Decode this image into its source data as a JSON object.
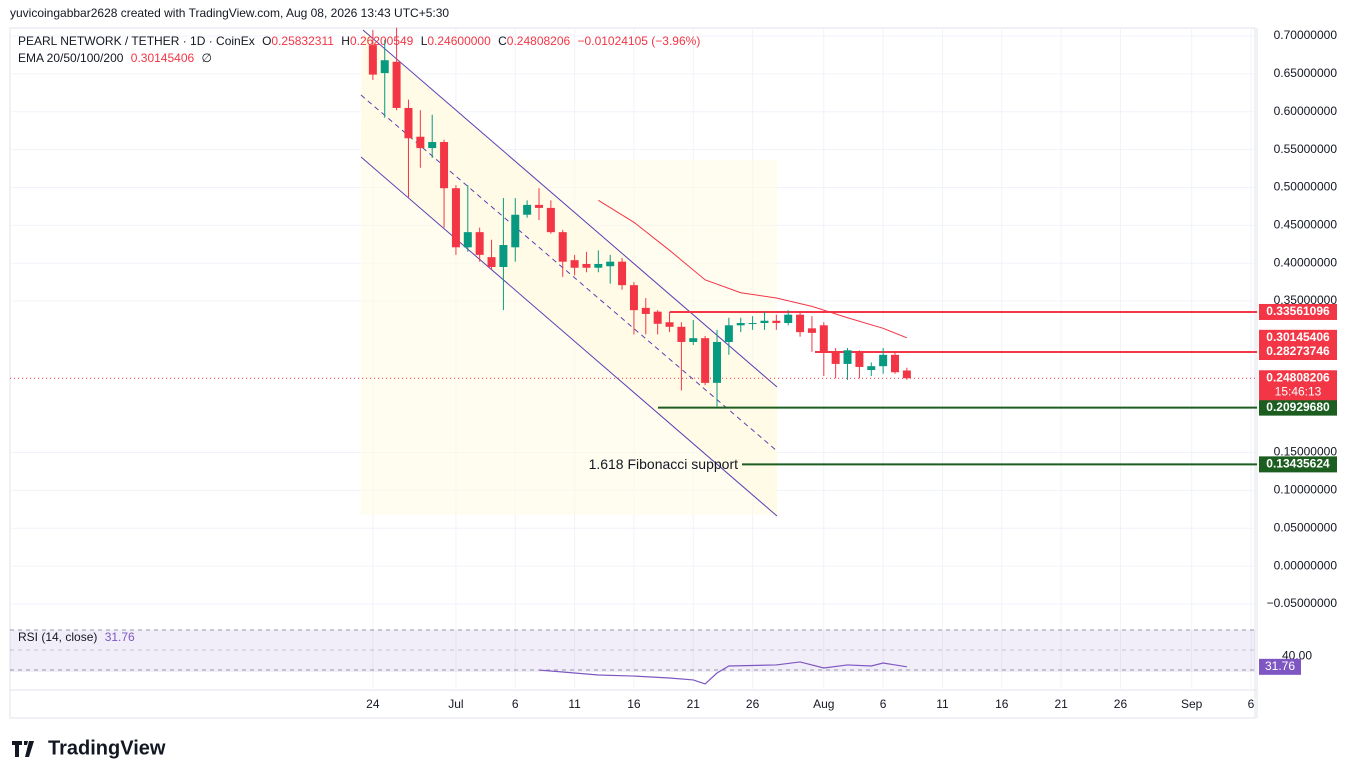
{
  "author_line": "yuvicoingabbar2628 created with TradingView.com, Aug 08, 2026 13:43 UTC+5:30",
  "logo": "TradingView",
  "chart_data": {
    "type": "candlestick",
    "title": "PEARL NETWORK / TETHER · 1D · CoinEx",
    "header": {
      "labels": [
        "O",
        "H",
        "L",
        "C"
      ],
      "values": [
        "0.25832311",
        "0.26200549",
        "0.24600000",
        "0.24808206"
      ],
      "change": "−0.01024105 (−3.96%)"
    },
    "up_color": "#089981",
    "down_color": "#f23645",
    "x": [
      "2026-06-24",
      "2026-06-25",
      "2026-06-26",
      "2026-06-27",
      "2026-06-28",
      "2026-06-29",
      "2026-06-30",
      "2026-07-01",
      "2026-07-02",
      "2026-07-03",
      "2026-07-04",
      "2026-07-05",
      "2026-07-06",
      "2026-07-07",
      "2026-07-08",
      "2026-07-09",
      "2026-07-10",
      "2026-07-11",
      "2026-07-12",
      "2026-07-13",
      "2026-07-14",
      "2026-07-15",
      "2026-07-16",
      "2026-07-17",
      "2026-07-18",
      "2026-07-19",
      "2026-07-20",
      "2026-07-21",
      "2026-07-22",
      "2026-07-23",
      "2026-07-24",
      "2026-07-25",
      "2026-07-26",
      "2026-07-27",
      "2026-07-28",
      "2026-07-29",
      "2026-07-30",
      "2026-07-31",
      "2026-08-01",
      "2026-08-02",
      "2026-08-03",
      "2026-08-04",
      "2026-08-05",
      "2026-08-06",
      "2026-08-07",
      "2026-08-08"
    ],
    "open": [
      0.688,
      0.651,
      0.666,
      0.605,
      0.567,
      0.552,
      0.56,
      0.499,
      0.421,
      0.441,
      0.408,
      0.395,
      0.421,
      0.464,
      0.477,
      0.473,
      0.441,
      0.404,
      0.399,
      0.394,
      0.396,
      0.402,
      0.371,
      0.341,
      0.336,
      0.322,
      0.316,
      0.296,
      0.301,
      0.242,
      0.296,
      0.318,
      0.32,
      0.321,
      0.324,
      0.321,
      0.332,
      0.314,
      0.318,
      0.283,
      0.267,
      0.283,
      0.259,
      0.264,
      0.279,
      0.25832311
    ],
    "high": [
      0.708,
      0.695,
      0.711,
      0.616,
      0.602,
      0.596,
      0.563,
      0.503,
      0.503,
      0.447,
      0.431,
      0.486,
      0.486,
      0.483,
      0.499,
      0.483,
      0.444,
      0.411,
      0.415,
      0.417,
      0.411,
      0.407,
      0.375,
      0.354,
      0.338,
      0.336,
      0.322,
      0.325,
      0.304,
      0.312,
      0.328,
      0.328,
      0.33,
      0.336,
      0.332,
      0.338,
      0.336,
      0.33,
      0.322,
      0.288,
      0.288,
      0.285,
      0.269,
      0.288,
      0.283,
      0.26200549
    ],
    "low": [
      0.642,
      0.592,
      0.602,
      0.487,
      0.526,
      0.539,
      0.447,
      0.411,
      0.415,
      0.402,
      0.391,
      0.338,
      0.402,
      0.46,
      0.457,
      0.439,
      0.382,
      0.384,
      0.388,
      0.388,
      0.373,
      0.365,
      0.306,
      0.306,
      0.306,
      0.309,
      0.232,
      0.292,
      0.239,
      0.211,
      0.279,
      0.309,
      0.312,
      0.312,
      0.312,
      0.318,
      0.303,
      0.283,
      0.251,
      0.248,
      0.246,
      0.248,
      0.251,
      0.254,
      0.254,
      0.246
    ],
    "close": [
      0.649,
      0.668,
      0.605,
      0.565,
      0.552,
      0.56,
      0.499,
      0.421,
      0.441,
      0.411,
      0.395,
      0.424,
      0.464,
      0.477,
      0.473,
      0.441,
      0.402,
      0.394,
      0.394,
      0.399,
      0.402,
      0.371,
      0.338,
      0.333,
      0.32,
      0.316,
      0.296,
      0.301,
      0.242,
      0.296,
      0.318,
      0.321,
      0.321,
      0.324,
      0.321,
      0.332,
      0.309,
      0.308,
      0.283,
      0.267,
      0.285,
      0.263,
      0.264,
      0.279,
      0.256,
      0.24808206
    ],
    "countdown": "15:46:13",
    "xlim": [
      "2026-05-24",
      "2026-09-06"
    ],
    "xticks": [
      {
        "value": "2026-06-24",
        "label": "24"
      },
      {
        "value": "2026-07-01",
        "label": "Jul"
      },
      {
        "value": "2026-07-06",
        "label": "6"
      },
      {
        "value": "2026-07-11",
        "label": "11"
      },
      {
        "value": "2026-07-16",
        "label": "16"
      },
      {
        "value": "2026-07-21",
        "label": "21"
      },
      {
        "value": "2026-07-26",
        "label": "26"
      },
      {
        "value": "2026-08-01",
        "label": "Aug"
      },
      {
        "value": "2026-08-06",
        "label": "6"
      },
      {
        "value": "2026-08-11",
        "label": "11"
      },
      {
        "value": "2026-08-16",
        "label": "16"
      },
      {
        "value": "2026-08-21",
        "label": "21"
      },
      {
        "value": "2026-08-26",
        "label": "26"
      },
      {
        "value": "2026-09-01",
        "label": "Sep"
      },
      {
        "value": "2026-09-06",
        "label": "6"
      }
    ],
    "ylim": [
      -0.05,
      0.7
    ],
    "yticks": [
      {
        "value": 0.7,
        "label": "0.70000000"
      },
      {
        "value": 0.65,
        "label": "0.65000000"
      },
      {
        "value": 0.6,
        "label": "0.60000000"
      },
      {
        "value": 0.55,
        "label": "0.55000000"
      },
      {
        "value": 0.5,
        "label": "0.50000000"
      },
      {
        "value": 0.45,
        "label": "0.45000000"
      },
      {
        "value": 0.4,
        "label": "0.40000000"
      },
      {
        "value": 0.35,
        "label": "0.35000000"
      },
      {
        "value": 0.15,
        "label": "0.15000000"
      },
      {
        "value": 0.1,
        "label": "0.10000000"
      },
      {
        "value": 0.05,
        "label": "0.05000000"
      },
      {
        "value": 0,
        "label": "0.00000000"
      },
      {
        "value": -0.05,
        "label": "−0.05000000"
      }
    ],
    "grid": true,
    "ema": {
      "name": "EMA 20/50/100/200",
      "value": 0.30145406,
      "symbol": "∅",
      "color": "#f23645",
      "x": [
        "2026-07-13",
        "2026-07-16",
        "2026-07-19",
        "2026-07-22",
        "2026-07-25",
        "2026-07-28",
        "2026-07-31",
        "2026-08-03",
        "2026-08-06",
        "2026-08-08"
      ],
      "values": [
        0.483,
        0.454,
        0.417,
        0.378,
        0.361,
        0.354,
        0.343,
        0.328,
        0.314,
        0.30145406
      ]
    },
    "levels": [
      {
        "value": 0.33561096,
        "color": "#f23645"
      },
      {
        "value": 0.28273746,
        "color": "#f23645"
      },
      {
        "value": 0.2092968,
        "label": "0.20929680",
        "color": "#1b5e20"
      },
      {
        "value": 0.13435624,
        "color": "#1b5e20",
        "annotation": "1.618 Fibonacci support"
      }
    ],
    "rsi": {
      "name": "RSI (14, close)",
      "value": 31.76,
      "color": "#7e57c2",
      "ylim": [
        14,
        60
      ],
      "yticks": [
        {
          "value": 40,
          "label": "40.00"
        }
      ],
      "x": [
        "2026-07-08",
        "2026-07-10",
        "2026-07-13",
        "2026-07-16",
        "2026-07-19",
        "2026-07-21",
        "2026-07-22",
        "2026-07-23",
        "2026-07-24",
        "2026-07-28",
        "2026-07-30",
        "2026-08-01",
        "2026-08-03",
        "2026-08-05",
        "2026-08-06",
        "2026-08-08"
      ],
      "values": [
        29.3,
        27.8,
        25.5,
        24.7,
        23.2,
        21.7,
        18.6,
        27,
        32.4,
        33.2,
        35.5,
        30.9,
        33.2,
        32.4,
        34.7,
        31.76
      ]
    }
  }
}
